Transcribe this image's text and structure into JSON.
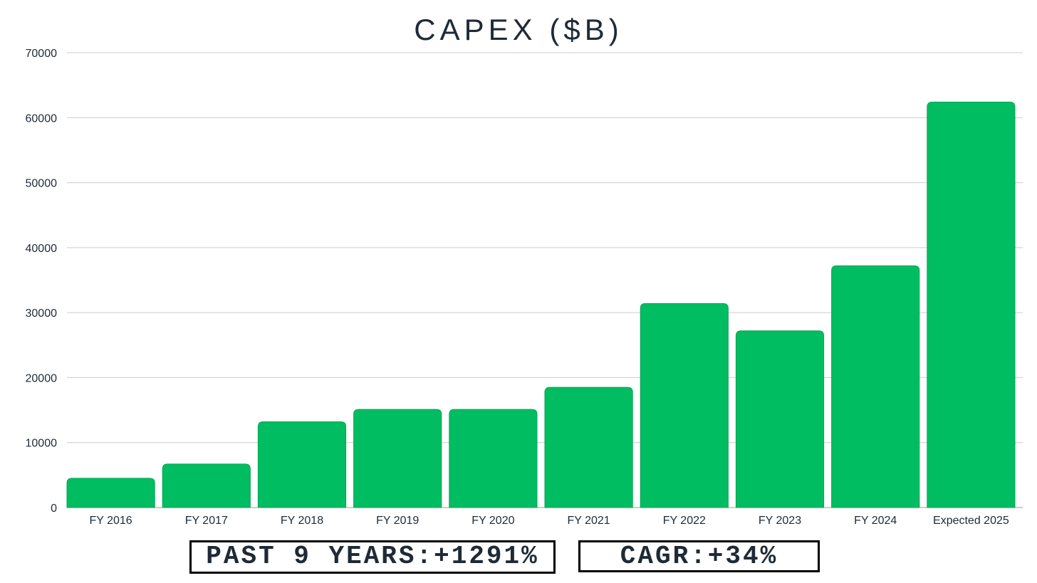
{
  "chart_data": {
    "type": "bar",
    "title": "CAPEX ($B)",
    "xlabel": "",
    "ylabel": "",
    "categories": [
      "FY 2016",
      "FY 2017",
      "FY 2018",
      "FY 2019",
      "FY 2020",
      "FY 2021",
      "FY 2022",
      "FY 2023",
      "FY 2024",
      "Expected 2025"
    ],
    "values": [
      4500,
      6700,
      13200,
      15100,
      15100,
      18500,
      31400,
      27200,
      37200,
      62400
    ],
    "ylim": [
      0,
      70000
    ],
    "yticks": [
      "0",
      "10000",
      "20000",
      "30000",
      "40000",
      "50000",
      "60000",
      "70000"
    ],
    "grid": true,
    "bar_color": "#00BD62",
    "legend": "none"
  },
  "annotations": {
    "growth": "PAST 9 YEARS:+1291%",
    "cagr": "CAGR:+34%"
  }
}
